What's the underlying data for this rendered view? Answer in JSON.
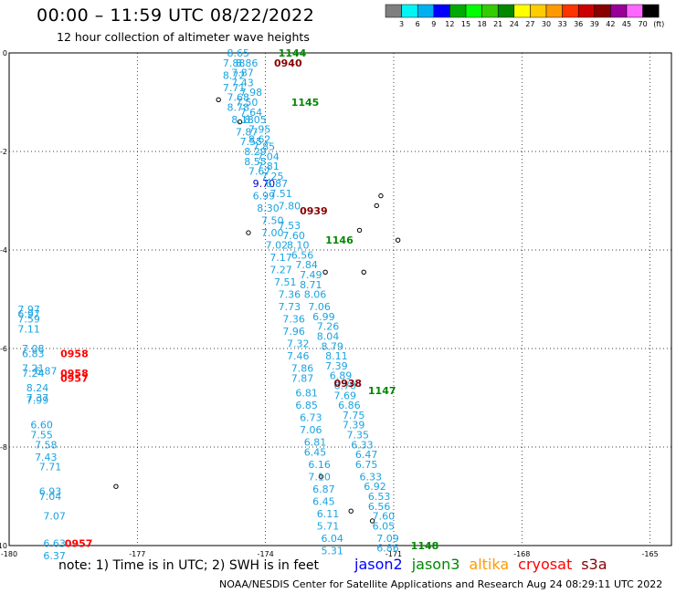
{
  "title": "00:00 – 11:59 UTC 08/22/2022",
  "subtitle": "12 hour collection of altimeter wave heights",
  "note": "note:  1) Time is in UTC;  2) SWH is in feet",
  "footer": "NOAA/NESDIS Center for Satellite Applications and Research      Aug 24 08:29:11 UTC 2022",
  "color_scale": {
    "unit": "(ft)",
    "labels": [
      "3",
      "6",
      "9",
      "12",
      "15",
      "18",
      "21",
      "24",
      "27",
      "30",
      "33",
      "36",
      "39",
      "42",
      "45",
      "70"
    ],
    "colors": [
      "#7f7f7f",
      "#00f5f5",
      "#00b0f0",
      "#0000ff",
      "#00aa00",
      "#00ff00",
      "#33cc00",
      "#008800",
      "#ffff00",
      "#ffcc00",
      "#ff9900",
      "#ff3300",
      "#cc0000",
      "#880000",
      "#990099",
      "#ff66ff",
      "#000000"
    ]
  },
  "satellites": [
    {
      "name": "jason2",
      "color": "#0000ff"
    },
    {
      "name": "jason3",
      "color": "#008800"
    },
    {
      "name": "altika",
      "color": "#ff9900"
    },
    {
      "name": "cryosat",
      "color": "#ff0000"
    },
    {
      "name": "s3a",
      "color": "#880000"
    }
  ],
  "axes": {
    "x_ticks": [
      "-180",
      "-177",
      "-174",
      "-171",
      "-168",
      "-165"
    ],
    "y_ticks": [
      "0",
      "-2",
      "-4",
      "-6",
      "-8",
      "-10"
    ]
  },
  "track_times": [
    {
      "text": "1144",
      "color": "#008800",
      "lon": -173.7,
      "lat": 0.0
    },
    {
      "text": "0940",
      "color": "#880000",
      "lon": -173.8,
      "lat": -0.2
    },
    {
      "text": "1145",
      "color": "#008800",
      "lon": -173.4,
      "lat": -1.0
    },
    {
      "text": "0939",
      "color": "#880000",
      "lon": -173.2,
      "lat": -3.2
    },
    {
      "text": "1146",
      "color": "#008800",
      "lon": -172.6,
      "lat": -3.8
    },
    {
      "text": "0958",
      "color": "#ff0000",
      "lon": -178.8,
      "lat": -6.1
    },
    {
      "text": "0958",
      "color": "#ff0000",
      "lon": -178.8,
      "lat": -6.5
    },
    {
      "text": "0957",
      "color": "#ff0000",
      "lon": -178.8,
      "lat": -6.6
    },
    {
      "text": "0938",
      "color": "#880000",
      "lon": -172.4,
      "lat": -6.7
    },
    {
      "text": "1147",
      "color": "#008800",
      "lon": -171.6,
      "lat": -6.85
    },
    {
      "text": "0957",
      "color": "#ff0000",
      "lon": -178.7,
      "lat": -9.95
    },
    {
      "text": "1148",
      "color": "#008800",
      "lon": -170.6,
      "lat": -10.0
    }
  ],
  "swh_values": [
    {
      "v": "8.65",
      "lon": -174.9,
      "lat": 0.0
    },
    {
      "v": "7.88",
      "lon": -175.0,
      "lat": -0.2
    },
    {
      "v": "8.86",
      "lon": -174.7,
      "lat": -0.2
    },
    {
      "v": "7.87",
      "lon": -174.8,
      "lat": -0.4
    },
    {
      "v": "8.72",
      "lon": -175.0,
      "lat": -0.45
    },
    {
      "v": "7.43",
      "lon": -174.8,
      "lat": -0.6
    },
    {
      "v": "7.71",
      "lon": -175.0,
      "lat": -0.7
    },
    {
      "v": "7.98",
      "lon": -174.6,
      "lat": -0.8
    },
    {
      "v": "7.68",
      "lon": -174.9,
      "lat": -0.9
    },
    {
      "v": "7.50",
      "lon": -174.7,
      "lat": -1.0
    },
    {
      "v": "8.78",
      "lon": -174.9,
      "lat": -1.1
    },
    {
      "v": "7.64",
      "lon": -174.6,
      "lat": -1.2
    },
    {
      "v": "8.18",
      "lon": -174.8,
      "lat": -1.35
    },
    {
      "v": "8.05",
      "lon": -174.5,
      "lat": -1.35
    },
    {
      "v": "7.95",
      "lon": -174.4,
      "lat": -1.55
    },
    {
      "v": "7.87",
      "lon": -174.7,
      "lat": -1.6
    },
    {
      "v": "8.62",
      "lon": -174.4,
      "lat": -1.75
    },
    {
      "v": "7.55",
      "lon": -174.6,
      "lat": -1.8
    },
    {
      "v": "7.85",
      "lon": -174.3,
      "lat": -1.9
    },
    {
      "v": "8.29",
      "lon": -174.5,
      "lat": -2.0
    },
    {
      "v": "7.04",
      "lon": -174.2,
      "lat": -2.1
    },
    {
      "v": "8.55",
      "lon": -174.5,
      "lat": -2.2
    },
    {
      "v": "7.81",
      "lon": -174.2,
      "lat": -2.3
    },
    {
      "v": "7.67",
      "lon": -174.4,
      "lat": -2.4
    },
    {
      "v": "7.25",
      "lon": -174.1,
      "lat": -2.5
    },
    {
      "v": "9.70",
      "lon": -174.3,
      "lat": -2.65
    },
    {
      "v": "6.87",
      "lon": -174.0,
      "lat": -2.65
    },
    {
      "v": "6.99",
      "lon": -174.3,
      "lat": -2.9
    },
    {
      "v": "7.51",
      "lon": -173.9,
      "lat": -2.85
    },
    {
      "v": "8.30",
      "lon": -174.2,
      "lat": -3.15
    },
    {
      "v": "7.80",
      "lon": -173.7,
      "lat": -3.1
    },
    {
      "v": "7.50",
      "lon": -174.1,
      "lat": -3.4
    },
    {
      "v": "7.53",
      "lon": -173.7,
      "lat": -3.5
    },
    {
      "v": "7.00",
      "lon": -174.1,
      "lat": -3.65
    },
    {
      "v": "7.60",
      "lon": -173.6,
      "lat": -3.7
    },
    {
      "v": "7.02",
      "lon": -174.0,
      "lat": -3.9
    },
    {
      "v": "8.10",
      "lon": -173.5,
      "lat": -3.9
    },
    {
      "v": "7.17",
      "lon": -173.9,
      "lat": -4.15
    },
    {
      "v": "6.56",
      "lon": -173.4,
      "lat": -4.1
    },
    {
      "v": "7.27",
      "lon": -173.9,
      "lat": -4.4
    },
    {
      "v": "7.84",
      "lon": -173.3,
      "lat": -4.3
    },
    {
      "v": "7.49",
      "lon": -173.2,
      "lat": -4.5
    },
    {
      "v": "7.51",
      "lon": -173.8,
      "lat": -4.65
    },
    {
      "v": "8.71",
      "lon": -173.2,
      "lat": -4.7
    },
    {
      "v": "7.36",
      "lon": -173.7,
      "lat": -4.9
    },
    {
      "v": "8.06",
      "lon": -173.1,
      "lat": -4.9
    },
    {
      "v": "7.73",
      "lon": -173.7,
      "lat": -5.15
    },
    {
      "v": "7.06",
      "lon": -173.0,
      "lat": -5.15
    },
    {
      "v": "6.99",
      "lon": -172.9,
      "lat": -5.35
    },
    {
      "v": "7.36",
      "lon": -173.6,
      "lat": -5.4
    },
    {
      "v": "7.26",
      "lon": -172.8,
      "lat": -5.55
    },
    {
      "v": "7.96",
      "lon": -173.6,
      "lat": -5.65
    },
    {
      "v": "8.04",
      "lon": -172.8,
      "lat": -5.75
    },
    {
      "v": "7.32",
      "lon": -173.5,
      "lat": -5.9
    },
    {
      "v": "8.79",
      "lon": -172.7,
      "lat": -5.95
    },
    {
      "v": "7.46",
      "lon": -173.5,
      "lat": -6.15
    },
    {
      "v": "8.11",
      "lon": -172.6,
      "lat": -6.15
    },
    {
      "v": "7.86",
      "lon": -173.4,
      "lat": -6.4
    },
    {
      "v": "7.39",
      "lon": -172.6,
      "lat": -6.35
    },
    {
      "v": "7.87",
      "lon": -173.4,
      "lat": -6.6
    },
    {
      "v": "6.89",
      "lon": -172.5,
      "lat": -6.55
    },
    {
      "v": "6.70",
      "lon": -172.4,
      "lat": -6.75
    },
    {
      "v": "6.81",
      "lon": -173.3,
      "lat": -6.9
    },
    {
      "v": "7.69",
      "lon": -172.4,
      "lat": -6.95
    },
    {
      "v": "6.85",
      "lon": -173.3,
      "lat": -7.15
    },
    {
      "v": "6.86",
      "lon": -172.3,
      "lat": -7.15
    },
    {
      "v": "6.73",
      "lon": -173.2,
      "lat": -7.4
    },
    {
      "v": "7.75",
      "lon": -172.2,
      "lat": -7.35
    },
    {
      "v": "7.39",
      "lon": -172.2,
      "lat": -7.55
    },
    {
      "v": "7.06",
      "lon": -173.2,
      "lat": -7.65
    },
    {
      "v": "7.35",
      "lon": -172.1,
      "lat": -7.75
    },
    {
      "v": "6.81",
      "lon": -173.1,
      "lat": -7.9
    },
    {
      "v": "6.33",
      "lon": -172.0,
      "lat": -7.95
    },
    {
      "v": "6.45",
      "lon": -173.1,
      "lat": -8.1
    },
    {
      "v": "6.47",
      "lon": -171.9,
      "lat": -8.15
    },
    {
      "v": "6.16",
      "lon": -173.0,
      "lat": -8.35
    },
    {
      "v": "6.75",
      "lon": -171.9,
      "lat": -8.35
    },
    {
      "v": "7.10",
      "lon": -173.0,
      "lat": -8.6
    },
    {
      "v": "6.33",
      "lon": -171.8,
      "lat": -8.6
    },
    {
      "v": "6.87",
      "lon": -172.9,
      "lat": -8.85
    },
    {
      "v": "6.92",
      "lon": -171.7,
      "lat": -8.8
    },
    {
      "v": "6.53",
      "lon": -171.6,
      "lat": -9.0
    },
    {
      "v": "6.45",
      "lon": -172.9,
      "lat": -9.1
    },
    {
      "v": "6.56",
      "lon": -171.6,
      "lat": -9.2
    },
    {
      "v": "6.11",
      "lon": -172.8,
      "lat": -9.35
    },
    {
      "v": "7.60",
      "lon": -171.5,
      "lat": -9.4
    },
    {
      "v": "6.05",
      "lon": -171.5,
      "lat": -9.6
    },
    {
      "v": "5.71",
      "lon": -172.8,
      "lat": -9.6
    },
    {
      "v": "6.04",
      "lon": -172.7,
      "lat": -9.85
    },
    {
      "v": "7.09",
      "lon": -171.4,
      "lat": -9.85
    },
    {
      "v": "5.31",
      "lon": -172.7,
      "lat": -10.1
    },
    {
      "v": "6.86",
      "lon": -171.4,
      "lat": -10.05
    },
    {
      "v": "7.97",
      "lon": -179.8,
      "lat": -5.2
    },
    {
      "v": "6.97",
      "lon": -179.8,
      "lat": -5.3
    },
    {
      "v": "7.59",
      "lon": -179.8,
      "lat": -5.4
    },
    {
      "v": "7.11",
      "lon": -179.8,
      "lat": -5.6
    },
    {
      "v": "7.08",
      "lon": -179.7,
      "lat": -6.0
    },
    {
      "v": "6.83",
      "lon": -179.7,
      "lat": -6.1
    },
    {
      "v": "7.21",
      "lon": -179.7,
      "lat": -6.4
    },
    {
      "v": "6.87",
      "lon": -179.4,
      "lat": -6.45
    },
    {
      "v": "7.24",
      "lon": -179.7,
      "lat": -6.5
    },
    {
      "v": "8.24",
      "lon": -179.6,
      "lat": -6.8
    },
    {
      "v": "7.37",
      "lon": -179.6,
      "lat": -7.0
    },
    {
      "v": "7.99",
      "lon": -179.6,
      "lat": -7.05
    },
    {
      "v": "6.60",
      "lon": -179.5,
      "lat": -7.55
    },
    {
      "v": "7.55",
      "lon": -179.5,
      "lat": -7.75
    },
    {
      "v": "7.58",
      "lon": -179.4,
      "lat": -7.95
    },
    {
      "v": "7.43",
      "lon": -179.4,
      "lat": -8.2
    },
    {
      "v": "7.71",
      "lon": -179.3,
      "lat": -8.4
    },
    {
      "v": "6.93",
      "lon": -179.3,
      "lat": -8.9
    },
    {
      "v": "7.04",
      "lon": -179.3,
      "lat": -9.0
    },
    {
      "v": "7.07",
      "lon": -179.2,
      "lat": -9.4
    },
    {
      "v": "6.63",
      "lon": -179.2,
      "lat": -9.95
    },
    {
      "v": "6.37",
      "lon": -179.2,
      "lat": -10.2
    }
  ]
}
